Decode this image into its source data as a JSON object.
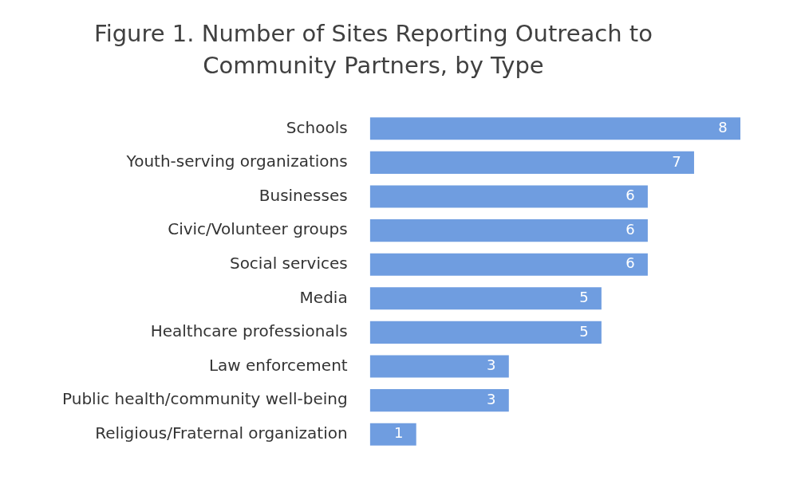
{
  "chart_data": {
    "type": "bar",
    "orientation": "horizontal",
    "title": "Figure 1. Number of Sites Reporting Outreach to Community Partners, by Type",
    "categories": [
      "Schools",
      "Youth-serving organizations",
      "Businesses",
      "Civic/Volunteer groups",
      "Social services",
      "Media",
      "Healthcare professionals",
      "Law enforcement",
      "Public health/community well-being",
      "Religious/Fraternal organization"
    ],
    "values": [
      8,
      7,
      6,
      6,
      6,
      5,
      5,
      3,
      3,
      1
    ],
    "color": "#6f9de0",
    "data_labels": true,
    "xlim": [
      0,
      8
    ]
  }
}
